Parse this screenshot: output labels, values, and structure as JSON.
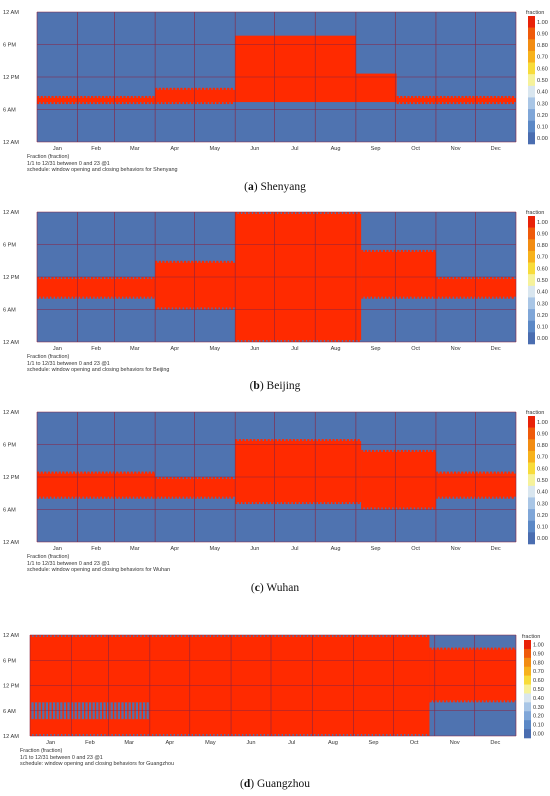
{
  "colors": {
    "background": "#4f73b0",
    "active": "#ff2a00",
    "gridline": "#8b2340",
    "legend_scale": [
      "#4a6db0",
      "#5b88c6",
      "#7fa6d8",
      "#a9c6e6",
      "#d9e6ef",
      "#f6f29a",
      "#f8dc3a",
      "#f7b21c",
      "#f28c12",
      "#ef5a0a",
      "#e92208"
    ]
  },
  "panels": [
    {
      "caption_letter": "a",
      "caption_name": "Shenyang",
      "meta_lines": [
        "Fraction (fraction)",
        "1/1 to 12/31 between 0 and 23 @1",
        "schedule: window opening and closing behaviors for Shenyang"
      ]
    },
    {
      "caption_letter": "b",
      "caption_name": "Beijing",
      "meta_lines": [
        "Fraction (fraction)",
        "1/1 to 12/31 between 0 and 23 @1",
        "schedule: window opening and closing behaviors for Beijing"
      ]
    },
    {
      "caption_letter": "c",
      "caption_name": "Wuhan",
      "meta_lines": [
        "Fraction (fraction)",
        "1/1 to 12/31 between 0 and 23 @1",
        "schedule: window opening and closing behaviors for Wuhan"
      ]
    },
    {
      "caption_letter": "d",
      "caption_name": "Guangzhou",
      "meta_lines": [
        "Fraction (fraction)",
        "1/1 to 12/31 between 0 and 23 @1",
        "schedule: window opening and closing behaviors for Guangzhou"
      ]
    }
  ],
  "chart_data": [
    {
      "type": "heatmap",
      "title": "Shenyang",
      "legend_title": "fraction",
      "legend_ticks": [
        "1.00",
        "0.90",
        "0.80",
        "0.70",
        "0.60",
        "0.50",
        "0.40",
        "0.30",
        "0.20",
        "0.10",
        "0.00"
      ],
      "y_ticks": [
        "12 AM",
        "6 PM",
        "12 PM",
        "6 AM",
        "12 AM"
      ],
      "months": [
        "Jan",
        "Feb",
        "Mar",
        "Apr",
        "May",
        "Jun",
        "Jul",
        "Aug",
        "Sep",
        "Oct",
        "Nov",
        "Dec"
      ],
      "x_range_days": [
        0,
        365
      ],
      "y_range_hours": [
        0,
        24
      ],
      "blocks": [
        {
          "day_start": 0,
          "day_end": 90,
          "open_hour": 7,
          "close_hour": 8.5,
          "comb": true
        },
        {
          "day_start": 90,
          "day_end": 151,
          "open_hour": 7,
          "close_hour": 10,
          "comb": true
        },
        {
          "day_start": 151,
          "day_end": 243,
          "open_hour": 7,
          "close_hour": 20,
          "comb": false
        },
        {
          "day_start": 243,
          "day_end": 274,
          "open_hour": 7,
          "close_hour": 13,
          "comb": false
        },
        {
          "day_start": 274,
          "day_end": 365,
          "open_hour": 7,
          "close_hour": 8.5,
          "comb": true
        }
      ]
    },
    {
      "type": "heatmap",
      "title": "Beijing",
      "legend_title": "fraction",
      "legend_ticks": [
        "1.00",
        "0.90",
        "0.80",
        "0.70",
        "0.60",
        "0.50",
        "0.40",
        "0.30",
        "0.20",
        "0.10",
        "0.00"
      ],
      "y_ticks": [
        "12 AM",
        "6 PM",
        "12 PM",
        "6 AM",
        "12 AM"
      ],
      "months": [
        "Jan",
        "Feb",
        "Mar",
        "Apr",
        "May",
        "Jun",
        "Jul",
        "Aug",
        "Sep",
        "Oct",
        "Nov",
        "Dec"
      ],
      "x_range_days": [
        0,
        365
      ],
      "y_range_hours": [
        0,
        24
      ],
      "blocks": [
        {
          "day_start": 0,
          "day_end": 90,
          "open_hour": 8,
          "close_hour": 12,
          "comb": true
        },
        {
          "day_start": 90,
          "day_end": 151,
          "open_hour": 6,
          "close_hour": 15,
          "comb": true
        },
        {
          "day_start": 151,
          "day_end": 247,
          "open_hour": 0,
          "close_hour": 24,
          "comb": true
        },
        {
          "day_start": 247,
          "day_end": 304,
          "open_hour": 8,
          "close_hour": 17,
          "comb": true
        },
        {
          "day_start": 304,
          "day_end": 365,
          "open_hour": 8,
          "close_hour": 12,
          "comb": true
        }
      ]
    },
    {
      "type": "heatmap",
      "title": "Wuhan",
      "legend_title": "fraction",
      "legend_ticks": [
        "1.00",
        "0.90",
        "0.80",
        "0.70",
        "0.60",
        "0.50",
        "0.40",
        "0.30",
        "0.20",
        "0.10",
        "0.00"
      ],
      "y_ticks": [
        "12 AM",
        "6 PM",
        "12 PM",
        "6 AM",
        "12 AM"
      ],
      "months": [
        "Jan",
        "Feb",
        "Mar",
        "Apr",
        "May",
        "Jun",
        "Jul",
        "Aug",
        "Sep",
        "Oct",
        "Nov",
        "Dec"
      ],
      "x_range_days": [
        0,
        365
      ],
      "y_range_hours": [
        0,
        24
      ],
      "blocks": [
        {
          "day_start": 0,
          "day_end": 90,
          "open_hour": 8,
          "close_hour": 13,
          "comb": true
        },
        {
          "day_start": 90,
          "day_end": 151,
          "open_hour": 8,
          "close_hour": 12,
          "comb": true
        },
        {
          "day_start": 151,
          "day_end": 247,
          "open_hour": 7,
          "close_hour": 19,
          "comb": true
        },
        {
          "day_start": 247,
          "day_end": 304,
          "open_hour": 6,
          "close_hour": 17,
          "comb": true
        },
        {
          "day_start": 304,
          "day_end": 365,
          "open_hour": 8,
          "close_hour": 13,
          "comb": true
        }
      ]
    },
    {
      "type": "heatmap",
      "title": "Guangzhou",
      "legend_title": "fraction",
      "legend_ticks": [
        "1.00",
        "0.90",
        "0.80",
        "0.70",
        "0.60",
        "0.50",
        "0.40",
        "0.30",
        "0.20",
        "0.10",
        "0.00"
      ],
      "y_ticks": [
        "12 AM",
        "6 PM",
        "12 PM",
        "6 AM",
        "12 AM"
      ],
      "months": [
        "Jan",
        "Feb",
        "Mar",
        "Apr",
        "May",
        "Jun",
        "Jul",
        "Aug",
        "Sep",
        "Oct",
        "Nov",
        "Dec"
      ],
      "x_range_days": [
        0,
        365
      ],
      "y_range_hours": [
        0,
        24
      ],
      "blocks": [
        {
          "day_start": 0,
          "day_end": 90,
          "open_hour": 0,
          "close_hour": 24,
          "comb": true,
          "gap_start": 4,
          "gap_end": 8
        },
        {
          "day_start": 90,
          "day_end": 300,
          "open_hour": 0,
          "close_hour": 24,
          "comb": true
        },
        {
          "day_start": 300,
          "day_end": 365,
          "open_hour": 8,
          "close_hour": 21,
          "comb": true
        }
      ]
    }
  ]
}
